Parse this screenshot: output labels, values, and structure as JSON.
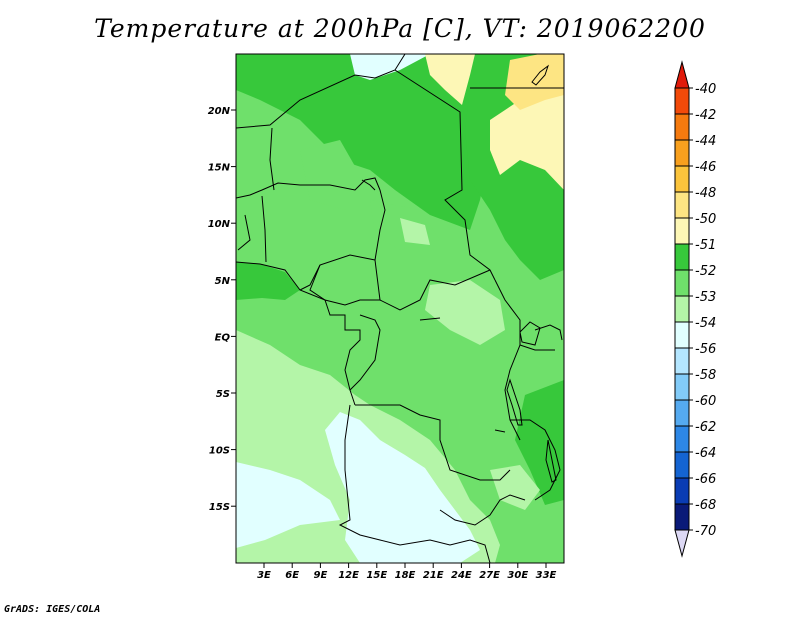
{
  "title": "Temperature at 200hPa [C], VT: 2019062200",
  "credit": "GrADS: IGES/COLA",
  "map": {
    "lat_ticks": [
      "20N",
      "15N",
      "10N",
      "5N",
      "EQ",
      "5S",
      "10S",
      "15S"
    ],
    "lon_ticks": [
      "3E",
      "6E",
      "9E",
      "12E",
      "15E",
      "18E",
      "21E",
      "24E",
      "27E",
      "30E",
      "33E"
    ]
  },
  "colorbar": {
    "labels": [
      "-40",
      "-42",
      "-44",
      "-46",
      "-48",
      "-50",
      "-51",
      "-52",
      "-53",
      "-54",
      "-56",
      "-58",
      "-60",
      "-62",
      "-64",
      "-66",
      "-68",
      "-70"
    ],
    "colors": [
      "#e01a0a",
      "#f24a0a",
      "#f57a0f",
      "#f8a01e",
      "#fbc43c",
      "#fde583",
      "#fdf7b6",
      "#37c83b",
      "#6fe06b",
      "#b4f5a8",
      "#e1ffff",
      "#b4e6ff",
      "#82cbf8",
      "#55aaf0",
      "#2d87e6",
      "#1464d2",
      "#0a3cb4",
      "#0a1a78",
      "#ddd9f5"
    ]
  },
  "palette": {
    "c52": "#37c83b",
    "c53": "#6fe06b",
    "c54": "#b4f5a8",
    "c56": "#e1ffff",
    "c51": "#fdf7b6",
    "c50": "#fde583"
  }
}
